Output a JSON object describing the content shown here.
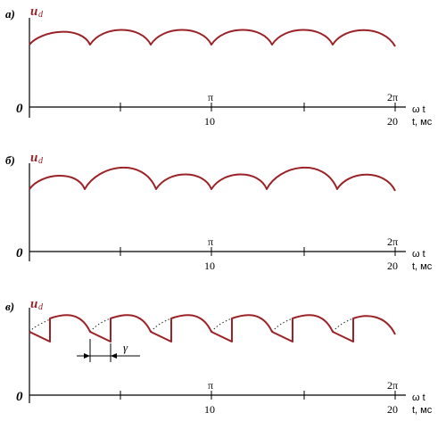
{
  "figure": {
    "y_label_main": "u",
    "y_label_sub": "d",
    "x_label_omega": "ω t",
    "x_label_time": "t, мс",
    "origin": "0",
    "tick_pi": "π",
    "tick_2pi": "2π",
    "tick_10": "10",
    "tick_20": "20"
  },
  "panels": [
    {
      "id": "a",
      "label": "а)"
    },
    {
      "id": "b",
      "label": "б)"
    },
    {
      "id": "c",
      "label": "в)",
      "gamma": "γ"
    }
  ],
  "colors": {
    "waveform": "#9b2226",
    "axis": "#000000"
  }
}
